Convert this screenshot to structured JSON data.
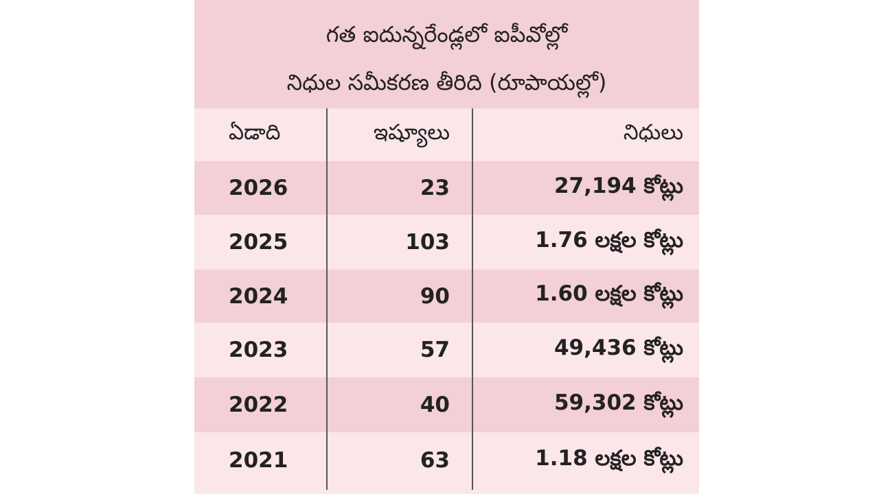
{
  "title": {
    "lines": [
      "గత ఐదున్నరేండ్లలో ఐపీవోల్లో",
      "నిధుల సమీకరణ తీరిది (రూపాయల్లో)"
    ]
  },
  "table": {
    "headers": [
      "ఏడాది",
      "ఇష్యూలు",
      "నిధులు"
    ],
    "rows": [
      [
        "2026",
        "23",
        "27,194 కోట్లు"
      ],
      [
        "2025",
        "103",
        "1.76 లక్షల కోట్లు"
      ],
      [
        "2024",
        "90",
        "1.60 లక్షల కోట్లు"
      ],
      [
        "2023",
        "57",
        "49,436 కోట్లు"
      ],
      [
        "2022",
        "40",
        "59,302 కోట్లు"
      ],
      [
        "2021",
        "63",
        "1.18 లక్షల కోట్లు"
      ]
    ]
  }
}
